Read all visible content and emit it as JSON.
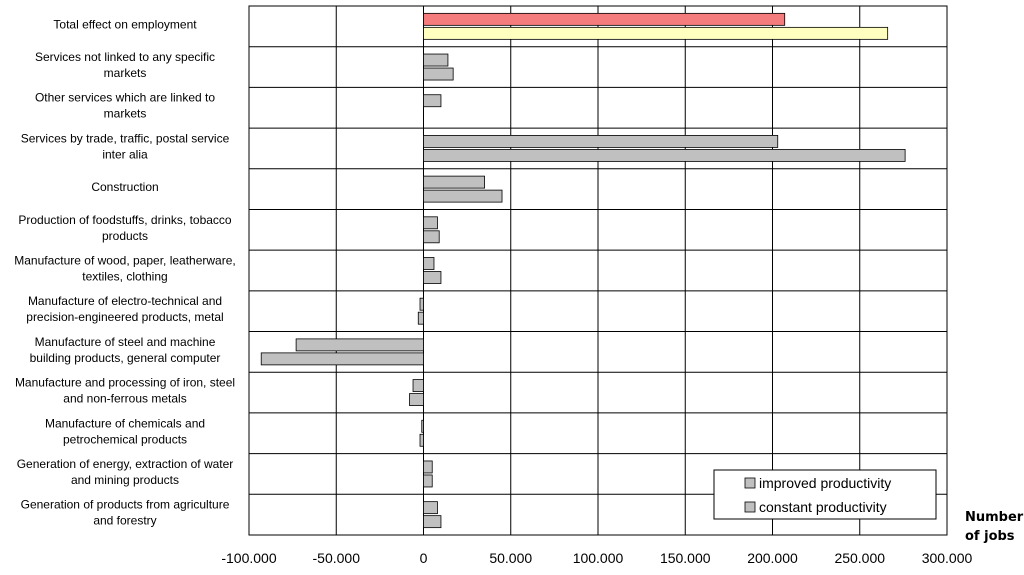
{
  "chart_data": {
    "type": "bar",
    "orientation": "horizontal",
    "categories": [
      "Total effect on employment",
      "Services not linked to any specific markets",
      "Other services which are linked to markets",
      "Services by trade, traffic, postal service inter alia",
      "Construction",
      "Production of foodstuffs, drinks, tobacco products",
      "Manufacture of wood, paper, leatherware, textiles, clothing",
      "Manufacture of electro-technical and precision-engineered products, metal",
      "Manufacture of steel and machine building products, general computer",
      "Manufacture and processing of iron, steel and non-ferrous metals",
      "Manufacture of chemicals and petrochemical products",
      "Generation of energy, extraction of water and mining products",
      "Generation of products from agriculture and forestry"
    ],
    "category_lines": [
      [
        "Total effect on employment"
      ],
      [
        "Services not linked to any specific",
        "markets"
      ],
      [
        "Other services which are linked to",
        "markets"
      ],
      [
        "Services by trade, traffic, postal service",
        "inter alia"
      ],
      [
        "Construction"
      ],
      [
        "Production of foodstuffs, drinks, tobacco",
        "products"
      ],
      [
        "Manufacture of wood, paper, leatherware,",
        "textiles, clothing"
      ],
      [
        "Manufacture of electro-technical and",
        "precision-engineered products, metal"
      ],
      [
        "Manufacture of steel and machine",
        "building products, general computer"
      ],
      [
        "Manufacture and processing of iron, steel",
        "and non-ferrous metals"
      ],
      [
        "Manufacture of chemicals and",
        "petrochemical products"
      ],
      [
        "Generation of energy, extraction of water",
        "and mining products"
      ],
      [
        "Generation of products from agriculture",
        "and forestry"
      ]
    ],
    "series": [
      {
        "name": "improved productivity",
        "values": [
          207000,
          14000,
          10000,
          203000,
          35000,
          8000,
          6000,
          -2000,
          -73000,
          -6000,
          -1000,
          5000,
          8000
        ]
      },
      {
        "name": "constant productivity",
        "values": [
          266000,
          17000,
          0,
          276000,
          45000,
          9000,
          10000,
          -3000,
          -93000,
          -8000,
          -2000,
          5000,
          10000
        ]
      }
    ],
    "highlight_colors": {
      "improved productivity": "#f47c7c",
      "constant productivity": "#ffffc0"
    },
    "bar_color": "#c0c0c0",
    "xlim": [
      -100000,
      300000
    ],
    "x_ticks": [
      -100000,
      -50000,
      0,
      50000,
      100000,
      150000,
      200000,
      250000,
      300000
    ],
    "x_tick_labels": [
      "-100.000",
      "-50.000",
      "0",
      "50.000",
      "100.000",
      "150.000",
      "200.000",
      "250.000",
      "300.000"
    ],
    "xlabel_lines": [
      "Number",
      "of jobs"
    ],
    "grid": true,
    "legend_position": "bottom-right"
  }
}
